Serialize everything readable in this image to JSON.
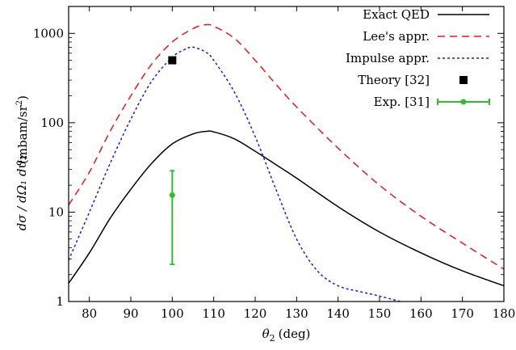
{
  "chart_data": {
    "type": "line",
    "xlabel_symbol": "θ",
    "xlabel_subscript": "2",
    "xlabel_unit": "(deg)",
    "ylabel": "(mbam/sr",
    "ylabel_sup": "2",
    "ylabel_close": ")",
    "ylabel_fraction": "dσ / dΩ₁ dϑ₂",
    "xlim": [
      75,
      180
    ],
    "ylim": [
      1,
      2000
    ],
    "yscale": "log",
    "x_ticks": [
      80,
      90,
      100,
      110,
      120,
      130,
      140,
      150,
      160,
      170,
      180
    ],
    "y_ticks": [
      1,
      10,
      100,
      1000
    ],
    "legend_position": "top-right",
    "series": [
      {
        "name": "Exact QED",
        "color": "#000000",
        "style": "solid",
        "x": [
          75,
          80,
          85,
          90,
          95,
          100,
          105,
          108,
          110,
          115,
          120,
          125,
          130,
          140,
          150,
          160,
          170,
          180
        ],
        "y": [
          1.6,
          3.5,
          8.5,
          18,
          35,
          58,
          75,
          80,
          79,
          66,
          48,
          34,
          24,
          11.5,
          6,
          3.5,
          2.2,
          1.5
        ]
      },
      {
        "name": "Lee's appr.",
        "color": "#dd1c1c",
        "style": "dashed",
        "x": [
          75,
          80,
          85,
          90,
          95,
          100,
          105,
          108,
          110,
          115,
          120,
          125,
          130,
          140,
          150,
          160,
          170,
          180
        ],
        "y": [
          12,
          28,
          80,
          200,
          450,
          800,
          1130,
          1250,
          1200,
          880,
          500,
          270,
          150,
          52,
          20,
          9,
          4.5,
          2.3
        ]
      },
      {
        "name": "Impulse appr.",
        "color": "#1a1adb",
        "style": "dotted",
        "x": [
          75,
          80,
          85,
          90,
          95,
          100,
          103,
          105,
          108,
          110,
          115,
          120,
          125,
          130,
          135,
          140,
          145,
          150,
          155
        ],
        "y": [
          2.9,
          10,
          35,
          110,
          290,
          540,
          660,
          700,
          620,
          500,
          220,
          70,
          18,
          5,
          2.2,
          1.5,
          1.3,
          1.15,
          1.0
        ]
      }
    ],
    "points": [
      {
        "name": "Theory [32]",
        "color": "#000000",
        "marker": "square",
        "x": 100,
        "y": 500
      },
      {
        "name": "Exp. [31]",
        "color": "#33bb33",
        "marker": "circle-errorbar",
        "x": 100,
        "y": 15.5,
        "y_low": 2.6,
        "y_high": 29
      }
    ]
  }
}
